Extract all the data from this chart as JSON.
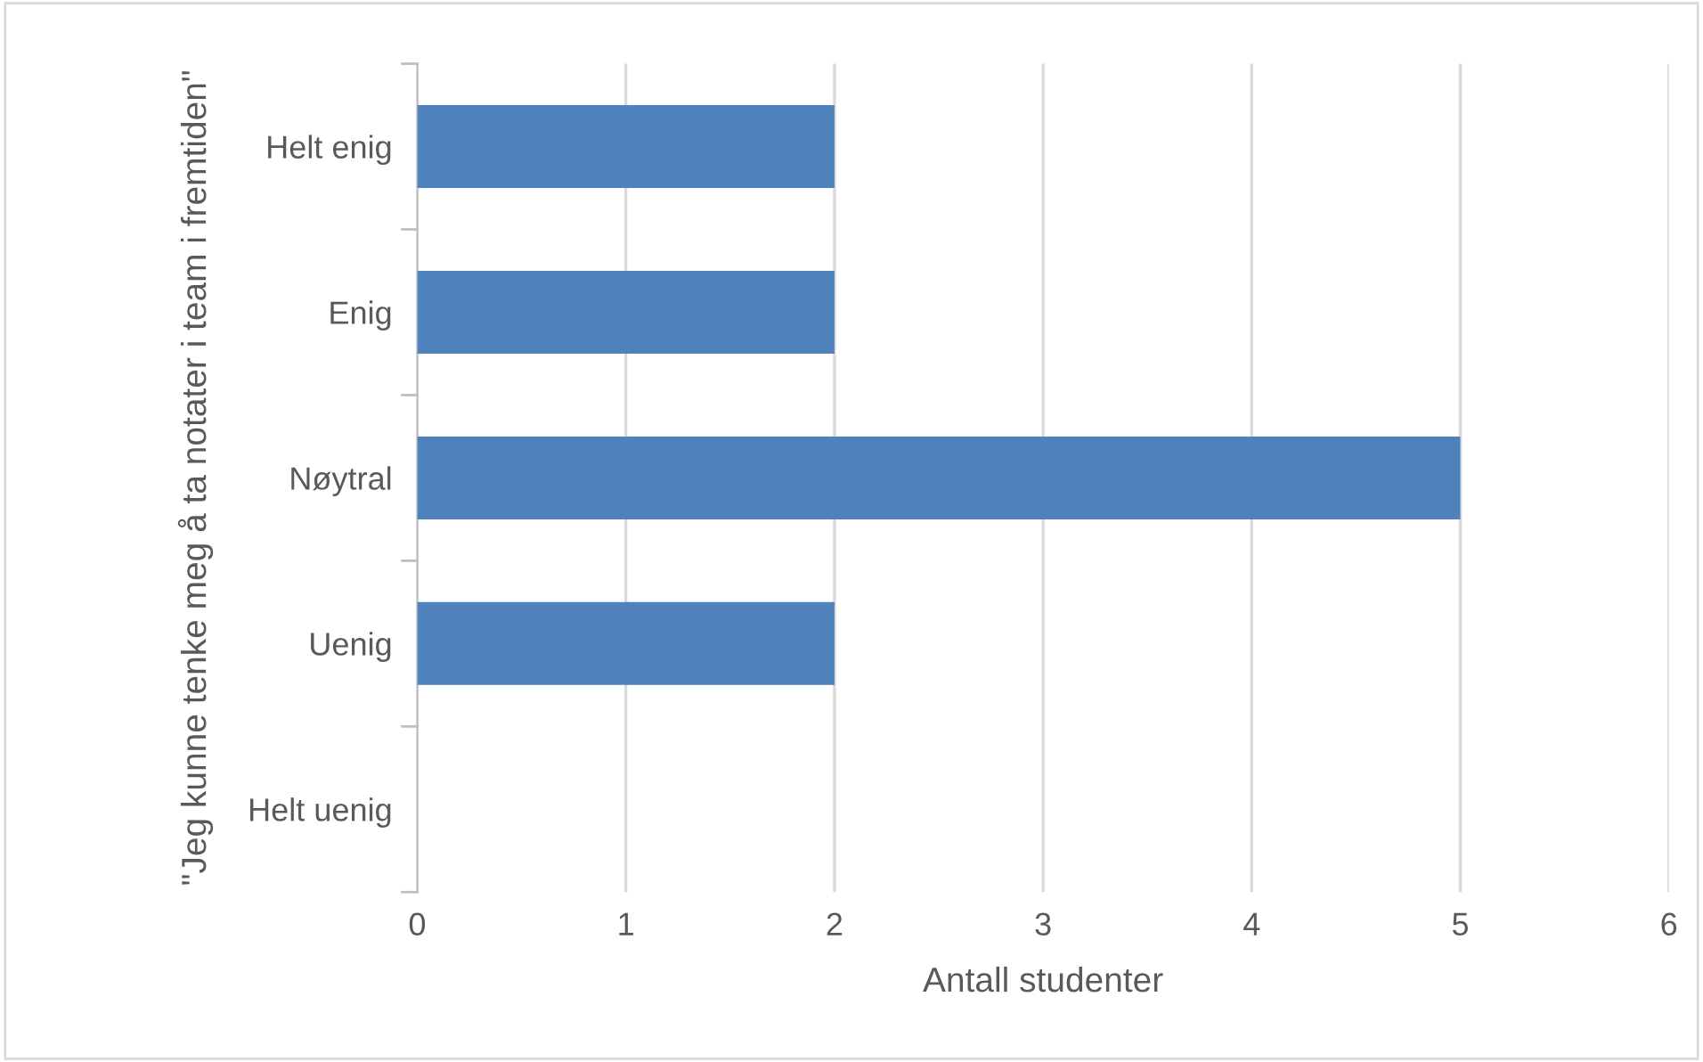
{
  "chart_data": {
    "type": "bar",
    "orientation": "horizontal",
    "categories": [
      "Helt enig",
      "Enig",
      "Nøytral",
      "Uenig",
      "Helt uenig"
    ],
    "values": [
      2,
      2,
      5,
      2,
      0
    ],
    "color": "#4f81bd",
    "xlabel": "Antall studenter",
    "ylabel": "\"Jeg kunne tenke meg å ta notater i team i fremtiden\"",
    "xlim": [
      0,
      6
    ],
    "xticks": [
      0,
      1,
      2,
      3,
      4,
      5,
      6
    ],
    "grid": "x",
    "legend": false
  }
}
